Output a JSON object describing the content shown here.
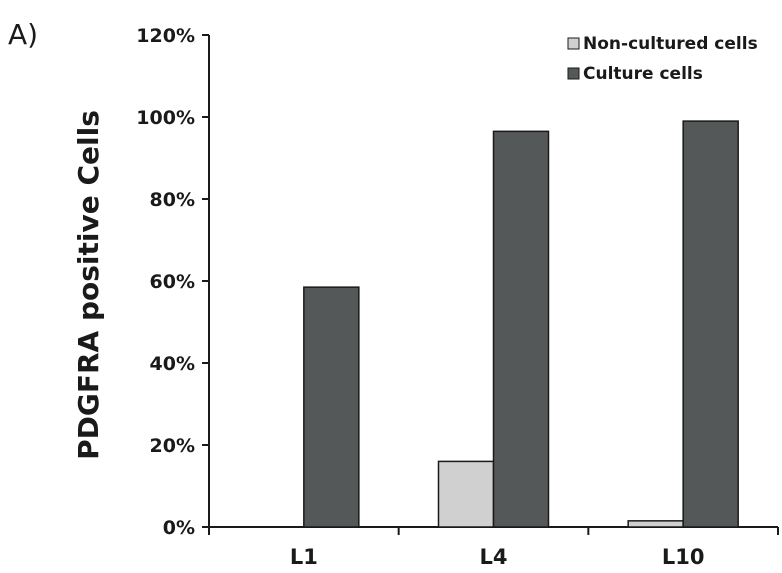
{
  "panel_label": "A)",
  "chart_data": {
    "type": "bar",
    "categories": [
      "L1",
      "L4",
      "L10"
    ],
    "series": [
      {
        "name": "Non-cultured cells",
        "values": [
          0,
          16,
          1.5
        ],
        "color": "#d0d0d0"
      },
      {
        "name": "Culture cells",
        "values": [
          58.5,
          96.5,
          99
        ],
        "color": "#555859"
      }
    ],
    "ylabel": "PDGFRA positive Cells",
    "xlabel": "",
    "ylim": [
      0,
      120
    ],
    "yticks": [
      0,
      20,
      40,
      60,
      80,
      100,
      120
    ],
    "ytick_labels": [
      "0%",
      "20%",
      "40%",
      "60%",
      "80%",
      "100%",
      "120%"
    ],
    "grid": false,
    "legend_position": "top-right"
  }
}
